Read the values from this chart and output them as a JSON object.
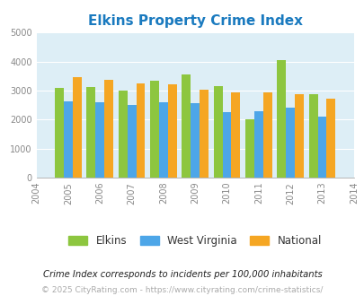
{
  "title": "Elkins Property Crime Index",
  "years": [
    2004,
    2005,
    2006,
    2007,
    2008,
    2009,
    2010,
    2011,
    2012,
    2013,
    2014
  ],
  "elkins": [
    null,
    3100,
    3120,
    3000,
    3330,
    3560,
    3160,
    2020,
    4050,
    2870,
    null
  ],
  "west_virginia": [
    null,
    2630,
    2600,
    2510,
    2590,
    2560,
    2260,
    2300,
    2400,
    2110,
    null
  ],
  "national": [
    null,
    3450,
    3360,
    3260,
    3220,
    3040,
    2950,
    2930,
    2880,
    2710,
    null
  ],
  "color_elkins": "#8dc63f",
  "color_wv": "#4da6e8",
  "color_national": "#f5a623",
  "bg_color": "#ddeef6",
  "ylim": [
    0,
    5000
  ],
  "yticks": [
    0,
    1000,
    2000,
    3000,
    4000,
    5000
  ],
  "legend_labels": [
    "Elkins",
    "West Virginia",
    "National"
  ],
  "footnote1": "Crime Index corresponds to incidents per 100,000 inhabitants",
  "footnote2": "© 2025 CityRating.com - https://www.cityrating.com/crime-statistics/",
  "title_color": "#1a7abf",
  "footnote1_color": "#222222",
  "footnote2_color": "#aaaaaa",
  "bar_width": 0.28
}
